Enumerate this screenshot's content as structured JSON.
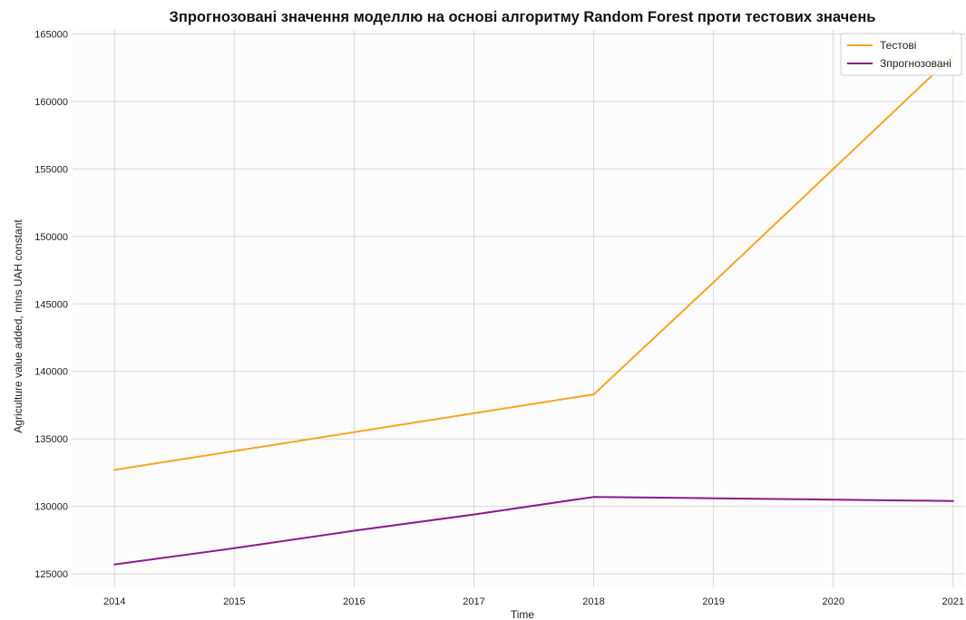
{
  "chart_data": {
    "type": "line",
    "title": "Зпрогнозовані значення моделлю на основі алгоритму Random Forest проти тестових значень",
    "xlabel": "Time",
    "ylabel": "Agriculture value added, mlns UAH constant",
    "x": [
      2014,
      2015,
      2016,
      2017,
      2018,
      2019,
      2020,
      2021
    ],
    "x_ticks": [
      "2014",
      "2015",
      "2016",
      "2017",
      "2018",
      "2019",
      "2020",
      "2021"
    ],
    "y_ticks": [
      "125000",
      "130000",
      "135000",
      "140000",
      "145000",
      "150000",
      "155000",
      "160000",
      "165000"
    ],
    "xlim": [
      2013.65,
      2021.1
    ],
    "ylim": [
      124000,
      165300
    ],
    "grid": true,
    "legend_position": "top-right",
    "series": [
      {
        "name": "Тестові",
        "color": "#F5A623",
        "values": [
          132700,
          134100,
          135500,
          136900,
          138300,
          146600,
          155000,
          163400
        ]
      },
      {
        "name": "Зпрогнозовані",
        "color": "#8B1A8B",
        "values": [
          125700,
          126900,
          128200,
          129400,
          130700,
          130600,
          130500,
          130400
        ]
      }
    ]
  }
}
